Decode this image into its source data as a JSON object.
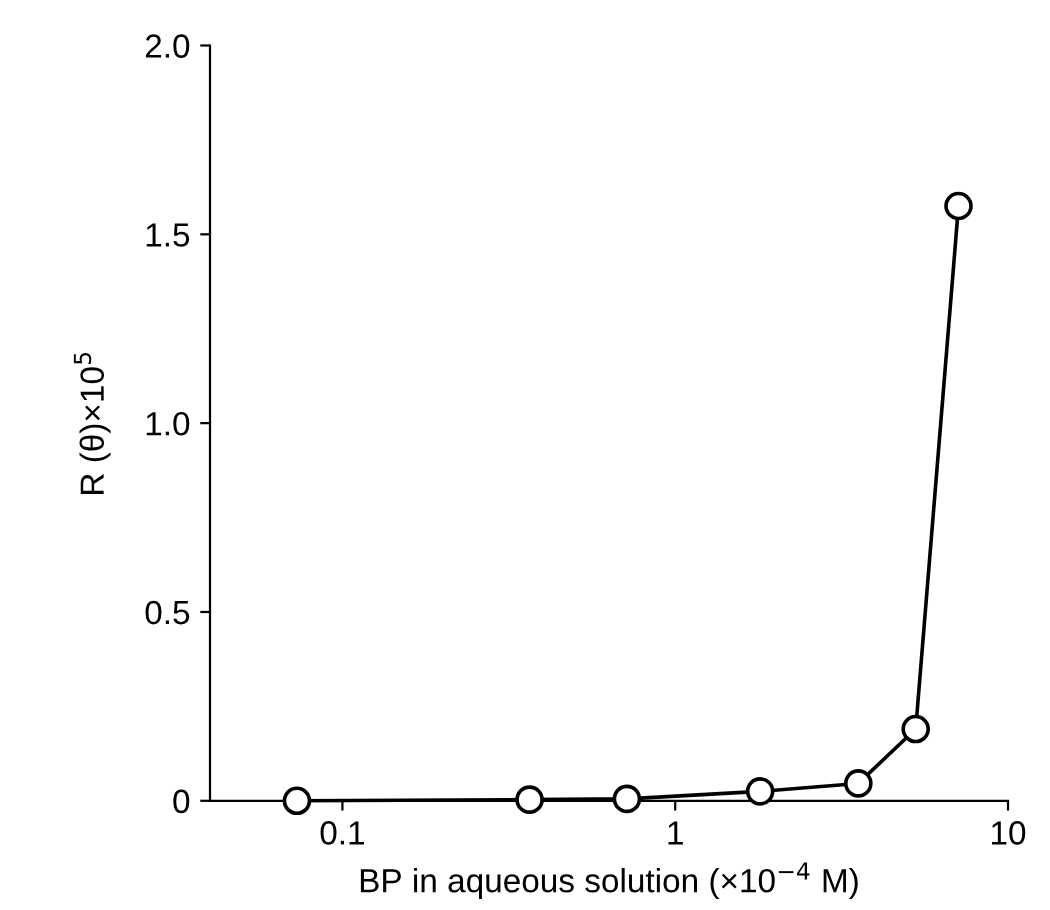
{
  "chart_data": {
    "type": "line",
    "xlabel": "BP in aqueous solution (×10$^{−4}$ M)",
    "ylabel": "R (θ)×10$^{5}$",
    "log": "x",
    "xlim": [
      0.04,
      10
    ],
    "xticks": [
      0.1,
      1,
      10
    ],
    "ylim": [
      0,
      2.0
    ],
    "yticks": [
      {
        "value": 0,
        "label": "0"
      },
      0.5,
      {
        "value": 1,
        "label": "1.0"
      },
      1.5,
      {
        "value": 2,
        "label": "2.0"
      }
    ],
    "marker": "circle",
    "line_style": "solid",
    "grid": false,
    "series": [
      {
        "color": "#000000",
        "x": [
          0.073,
          0.365,
          0.716,
          1.8,
          3.55,
          5.28,
          7.1
        ],
        "values": [
          0.0,
          0.003,
          0.005,
          0.025,
          0.046,
          0.19,
          1.575
        ]
      }
    ]
  }
}
